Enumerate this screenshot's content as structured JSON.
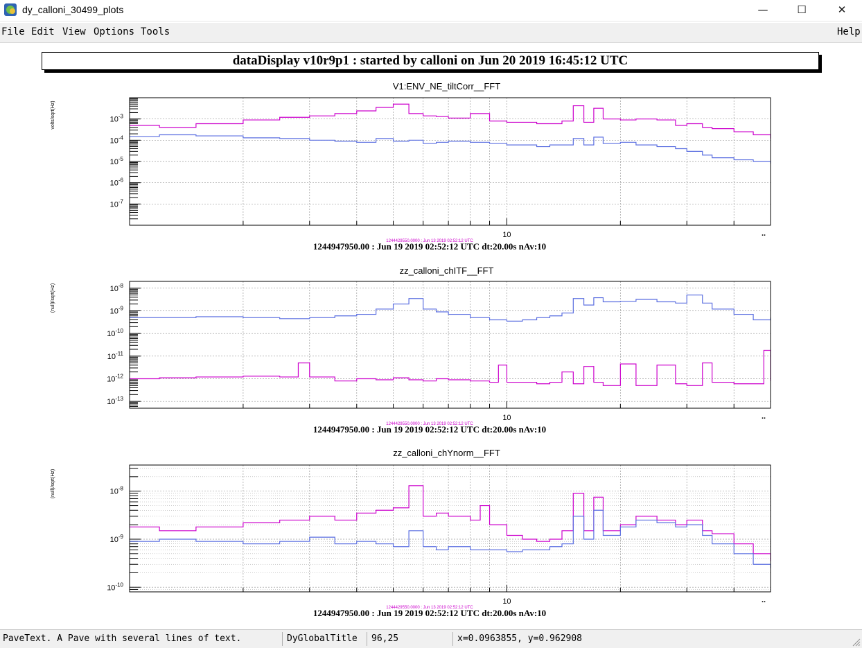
{
  "window": {
    "title": "dy_calloni_30499_plots",
    "controls": {
      "minimize": "—",
      "maximize": "☐",
      "close": "✕"
    }
  },
  "menu": {
    "items": [
      "File",
      "Edit",
      "View",
      "Options",
      "Tools"
    ],
    "help": "Help"
  },
  "main_title": "dataDisplay v10r9p1 : started by calloni on Jun 20 2019 16:45:12 UTC",
  "colors": {
    "magenta": "#cc00cc",
    "blue": "#5a6ee0",
    "grid": "#9a9a9a"
  },
  "chart_data": [
    {
      "type": "line",
      "title": "V1:ENV_NE_tiltCorr__FFT",
      "ylabel": "volts/sqrt(Hz)",
      "x_scale": "log",
      "y_scale": "log",
      "xlim": [
        1,
        50
      ],
      "ylim": [
        1e-08,
        0.01
      ],
      "y_ticks": [
        "10^-3",
        "10^-4",
        "10^-5",
        "10^-6",
        "10^-7"
      ],
      "y_tick_values": [
        0.001,
        0.0001,
        1e-05,
        1e-06,
        1e-07
      ],
      "x_tick_label": "10",
      "x_tick_value": 10,
      "x_axis_end_label": "..",
      "grid": true,
      "dense_minor_grid": false,
      "ref_label": "1244429550.0000 : Jun 13 2019 02:52:12 UTC",
      "footer": "1244947950.00 : Jun 19 2019 02:52:12 UTC dt:20.00s nAv:10",
      "series": [
        {
          "color": "#cc00cc",
          "x": [
            1,
            1.2,
            1.5,
            2,
            2.5,
            3,
            3.5,
            4,
            4.5,
            5,
            5.5,
            6,
            6.5,
            7,
            8,
            9,
            10,
            11,
            12,
            13,
            14,
            15,
            16,
            17,
            18,
            20,
            22,
            25,
            28,
            30,
            33,
            35,
            40,
            45,
            50
          ],
          "y": [
            0.0005,
            0.0004,
            0.0006,
            0.0009,
            0.0012,
            0.0014,
            0.0018,
            0.0024,
            0.0035,
            0.005,
            0.0018,
            0.0014,
            0.0013,
            0.0011,
            0.0018,
            0.0008,
            0.0007,
            0.0007,
            0.0006,
            0.0006,
            0.0008,
            0.0042,
            0.0007,
            0.0032,
            0.001,
            0.0009,
            0.001,
            0.0009,
            0.0005,
            0.0006,
            0.0004,
            0.00035,
            0.00025,
            0.00018,
            0.00012
          ]
        },
        {
          "color": "#5a6ee0",
          "x": [
            1,
            1.2,
            1.5,
            2,
            2.5,
            3,
            3.5,
            4,
            4.5,
            5,
            5.5,
            6,
            6.5,
            7,
            8,
            9,
            10,
            11,
            12,
            13,
            14,
            15,
            16,
            17,
            18,
            20,
            22,
            25,
            28,
            30,
            33,
            35,
            40,
            45,
            50
          ],
          "y": [
            0.00015,
            0.00018,
            0.00016,
            0.00013,
            0.00012,
            0.0001,
            9e-05,
            8e-05,
            0.00012,
            9e-05,
            0.0001,
            7e-05,
            8e-05,
            9e-05,
            8e-05,
            7e-05,
            6e-05,
            6e-05,
            5e-05,
            6e-05,
            6e-05,
            0.00012,
            6e-05,
            0.00014,
            7e-05,
            8e-05,
            6e-05,
            5e-05,
            4e-05,
            3e-05,
            2e-05,
            1.5e-05,
            1.2e-05,
            1e-05,
            8e-06
          ]
        }
      ]
    },
    {
      "type": "line",
      "title": "zz_calloni_chITF__FFT",
      "ylabel": "(null)/sqrt(Hz)",
      "x_scale": "log",
      "y_scale": "log",
      "xlim": [
        1,
        50
      ],
      "ylim": [
        5e-14,
        2e-08
      ],
      "y_ticks": [
        "10^-8",
        "10^-9",
        "10^-10",
        "10^-11",
        "10^-12",
        "10^-13"
      ],
      "y_tick_values": [
        1e-08,
        1e-09,
        1e-10,
        1e-11,
        1e-12,
        1e-13
      ],
      "x_tick_label": "10",
      "x_tick_value": 10,
      "x_axis_end_label": "..",
      "grid": true,
      "dense_minor_grid": false,
      "ref_label": "1244429550.0000 : Jun 13 2019 02:52:12 UTC",
      "footer": "1244947950.00 : Jun 19 2019 02:52:12 UTC dt:20.00s nAv:10",
      "series": [
        {
          "color": "#5a6ee0",
          "x": [
            1,
            1.2,
            1.5,
            2,
            2.5,
            3,
            3.5,
            4,
            4.5,
            5,
            5.5,
            6,
            6.5,
            7,
            8,
            9,
            10,
            11,
            12,
            13,
            14,
            15,
            16,
            17,
            18,
            20,
            22,
            25,
            28,
            30,
            33,
            35,
            40,
            45,
            50
          ],
          "y": [
            5e-10,
            5e-10,
            5.5e-10,
            5e-10,
            4.5e-10,
            5e-10,
            6e-10,
            7e-10,
            1.2e-09,
            2e-09,
            3.5e-09,
            1.2e-09,
            9e-10,
            7e-10,
            5e-10,
            4e-10,
            3.5e-10,
            4e-10,
            5e-10,
            6e-10,
            8e-10,
            3.5e-09,
            1.8e-09,
            3.8e-09,
            2.5e-09,
            2.6e-09,
            3.2e-09,
            2.5e-09,
            2.2e-09,
            5e-09,
            2.2e-09,
            1.2e-09,
            7e-10,
            4e-10,
            5e-10
          ]
        },
        {
          "color": "#cc00cc",
          "x": [
            1,
            1.2,
            1.5,
            2,
            2.5,
            2.8,
            3,
            3.5,
            4,
            4.5,
            5,
            5.5,
            6,
            6.5,
            7,
            8,
            9,
            9.5,
            10,
            11,
            12,
            13,
            14,
            15,
            16,
            17,
            18,
            20,
            22,
            25,
            28,
            30,
            33,
            35,
            40,
            45,
            48,
            50
          ],
          "y": [
            1e-12,
            1.1e-12,
            1.2e-12,
            1.3e-12,
            1.2e-12,
            5e-12,
            1.2e-12,
            8e-13,
            1e-12,
            9e-13,
            1.1e-12,
            9e-13,
            8e-13,
            1e-12,
            9e-13,
            8e-13,
            7e-13,
            4e-12,
            7e-13,
            7e-13,
            6e-13,
            7e-13,
            2e-12,
            6e-13,
            3.5e-12,
            7e-13,
            5e-13,
            4.5e-12,
            5e-13,
            4e-12,
            6e-13,
            5e-13,
            5e-12,
            7e-13,
            6e-13,
            6e-13,
            1.8e-11,
            8e-13
          ]
        }
      ]
    },
    {
      "type": "line",
      "title": "zz_calloni_chYnorm__FFT",
      "ylabel": "(null)/sqrt(Hz)",
      "x_scale": "log",
      "y_scale": "log",
      "xlim": [
        1,
        50
      ],
      "ylim": [
        8e-11,
        3.5e-08
      ],
      "y_ticks": [
        "10^-8",
        "10^-9",
        "10^-10"
      ],
      "y_tick_values": [
        1e-08,
        1e-09,
        1e-10
      ],
      "x_tick_label": "10",
      "x_tick_value": 10,
      "x_axis_end_label": "..",
      "grid": true,
      "dense_minor_grid": true,
      "ref_label": "1244429550.0000 : Jun 13 2019 02:52:12 UTC",
      "footer": "1244947950.00 : Jun 19 2019 02:52:12 UTC dt:20.00s nAv:10",
      "series": [
        {
          "color": "#cc00cc",
          "x": [
            1,
            1.2,
            1.5,
            2,
            2.5,
            3,
            3.5,
            4,
            4.5,
            5,
            5.5,
            6,
            6.5,
            7,
            8,
            8.5,
            9,
            10,
            11,
            12,
            13,
            14,
            15,
            16,
            17,
            18,
            20,
            22,
            25,
            28,
            30,
            33,
            35,
            40,
            45,
            50
          ],
          "y": [
            1.8e-09,
            1.5e-09,
            1.8e-09,
            2.2e-09,
            2.5e-09,
            3e-09,
            2.5e-09,
            3.5e-09,
            4e-09,
            4.5e-09,
            1.3e-08,
            3e-09,
            3.5e-09,
            3e-09,
            2.5e-09,
            5e-09,
            2e-09,
            1.2e-09,
            1e-09,
            9e-10,
            1e-09,
            1.5e-09,
            9e-09,
            1.5e-09,
            7.5e-09,
            1.5e-09,
            2e-09,
            3e-09,
            2.5e-09,
            2e-09,
            2.5e-09,
            1.5e-09,
            1.3e-09,
            8e-10,
            5e-10,
            3.5e-10
          ]
        },
        {
          "color": "#5a6ee0",
          "x": [
            1,
            1.2,
            1.5,
            2,
            2.5,
            3,
            3.5,
            4,
            4.5,
            5,
            5.5,
            6,
            6.5,
            7,
            8,
            9,
            10,
            11,
            12,
            13,
            14,
            15,
            16,
            17,
            18,
            20,
            22,
            25,
            28,
            30,
            33,
            35,
            40,
            45,
            50
          ],
          "y": [
            9e-10,
            1e-09,
            9e-10,
            8e-10,
            9e-10,
            1.1e-09,
            8e-10,
            9e-10,
            8e-10,
            7e-10,
            1.5e-09,
            7e-10,
            6e-10,
            7e-10,
            6e-10,
            6e-10,
            5.5e-10,
            6e-10,
            6e-10,
            7e-10,
            8e-10,
            3e-09,
            1e-09,
            4e-09,
            1.2e-09,
            1.8e-09,
            2.5e-09,
            2.2e-09,
            1.8e-09,
            2e-09,
            1.2e-09,
            8e-10,
            5e-10,
            3e-10,
            2.5e-10
          ]
        }
      ]
    }
  ],
  "status": {
    "description": "PaveText. A Pave with several lines of text.",
    "object": "DyGlobalTitle",
    "pixel": "96,25",
    "coords": "x=0.0963855, y=0.962908"
  }
}
